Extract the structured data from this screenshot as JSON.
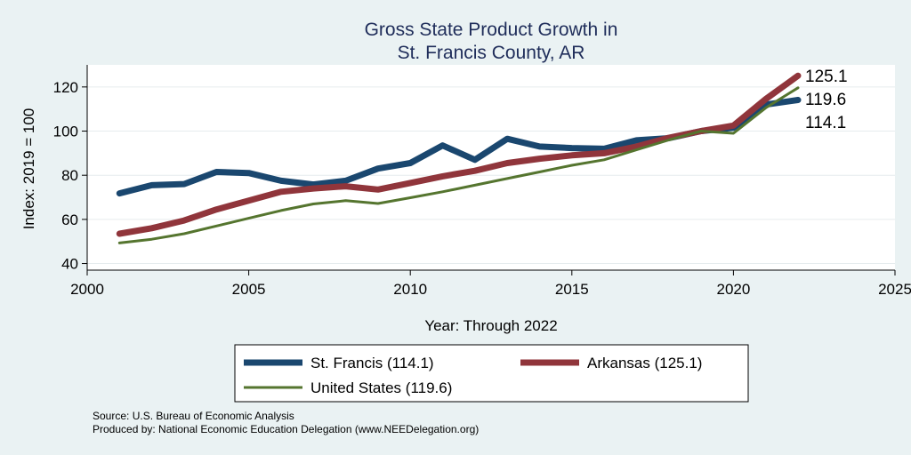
{
  "chart_data": {
    "type": "line",
    "title": [
      "Gross State Product Growth in",
      "St. Francis County, AR"
    ],
    "xlabel": "Year: Through 2022",
    "ylabel": "Index: 2019 = 100",
    "xlim": [
      2000,
      2025
    ],
    "ylim": [
      37,
      130
    ],
    "xticks": [
      "2000",
      "2005",
      "2010",
      "2015",
      "2020",
      "2025"
    ],
    "yticks": [
      "40",
      "60",
      "80",
      "100",
      "120"
    ],
    "grid": true,
    "legend_position": "bottom",
    "x": [
      2001,
      2002,
      2003,
      2004,
      2005,
      2006,
      2007,
      2008,
      2009,
      2010,
      2011,
      2012,
      2013,
      2014,
      2015,
      2016,
      2017,
      2018,
      2019,
      2020,
      2021,
      2022
    ],
    "series": [
      {
        "name": "St. Francis",
        "legend": "St. Francis  (114.1)",
        "end_label": "114.1",
        "color": "#1a476f",
        "values": [
          71.8,
          75.5,
          76.0,
          81.5,
          81.0,
          77.5,
          75.8,
          77.5,
          83.0,
          85.5,
          93.5,
          87.0,
          96.5,
          93.0,
          92.3,
          92.0,
          95.8,
          96.8,
          100.0,
          101.5,
          112.0,
          114.1
        ]
      },
      {
        "name": "Arkansas",
        "legend": "Arkansas (125.1)",
        "end_label": "125.1",
        "color": "#90353b",
        "values": [
          53.5,
          56.0,
          59.5,
          64.5,
          68.5,
          72.5,
          74.0,
          75.0,
          73.5,
          76.5,
          79.5,
          82.0,
          85.5,
          87.5,
          89.0,
          90.0,
          93.0,
          97.0,
          100.0,
          102.5,
          114.5,
          125.1
        ]
      },
      {
        "name": "United States",
        "legend": "United States (119.6)",
        "end_label": "119.6",
        "color": "#55752f",
        "values": [
          49.3,
          51.0,
          53.5,
          57.0,
          60.5,
          64.0,
          67.0,
          68.5,
          67.2,
          69.8,
          72.5,
          75.5,
          78.5,
          81.5,
          84.5,
          87.0,
          91.5,
          96.0,
          100.0,
          99.0,
          110.5,
          119.6
        ]
      }
    ]
  },
  "notes": {
    "source": "Source: U.S. Bureau of Economic Analysis",
    "produced": "Produced by: National Economic Education Delegation (www.NEEDelegation.org)"
  }
}
